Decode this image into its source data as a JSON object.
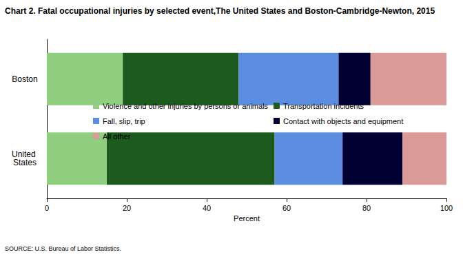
{
  "chart_data": {
    "type": "bar",
    "title": "Chart 2. Fatal occupational injuries by selected event,The United States and Boston-Cambridge-Newton, 2015",
    "source": "SOURCE: U.S. Bureau of Labor Statistics.",
    "orientation": "horizontal",
    "stacked": true,
    "grid": false,
    "x_label": "Percent",
    "categories": [
      "Boston",
      "United States"
    ],
    "series": [
      {
        "name": "Violence and other injuries by persons or animals",
        "color": "#8fcf7f",
        "values": [
          19,
          15
        ]
      },
      {
        "name": "Transportation incidents",
        "color": "#1d5a1d",
        "values": [
          29,
          42
        ]
      },
      {
        "name": "Fall, slip, trip",
        "color": "#5b8ee0",
        "values": [
          25,
          17
        ]
      },
      {
        "name": "Contact with objects and equipment",
        "color": "#000033",
        "values": [
          8,
          15
        ]
      },
      {
        "name": "All other",
        "color": "#d99a98",
        "values": [
          19,
          11
        ]
      }
    ],
    "xlim": [
      0,
      100
    ],
    "xticks": [
      0,
      20,
      40,
      60,
      80,
      100
    ]
  }
}
